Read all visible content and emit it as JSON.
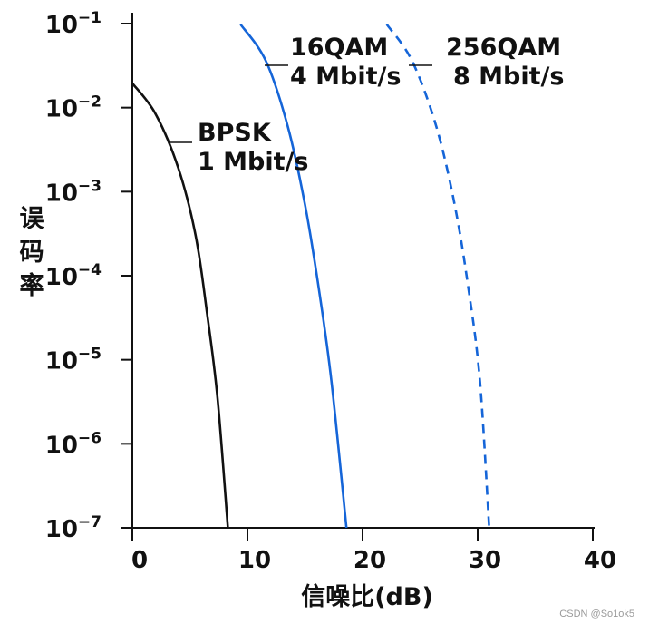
{
  "chart_data": {
    "type": "line",
    "ylabel": "误码率",
    "xlabel": "信噪比(dB)",
    "xlim": [
      0,
      40
    ],
    "ylim_exponents": [
      -7,
      -1
    ],
    "y_scale": "log",
    "x_ticks": [
      "0",
      "10",
      "20",
      "30",
      "40"
    ],
    "y_ticks": [
      {
        "base": "10",
        "exp": "−1"
      },
      {
        "base": "10",
        "exp": "−2"
      },
      {
        "base": "10",
        "exp": "−3"
      },
      {
        "base": "10",
        "exp": "−4"
      },
      {
        "base": "10",
        "exp": "−5"
      },
      {
        "base": "10",
        "exp": "−6"
      },
      {
        "base": "10",
        "exp": "−7"
      }
    ],
    "series": [
      {
        "label_lines": [
          "BPSK",
          "1 Mbit/s"
        ],
        "color": "#111111",
        "dashed": false,
        "points": [
          [
            0.0,
            0.0195
          ],
          [
            2.0,
            0.0085
          ],
          [
            4.0,
            0.0019
          ],
          [
            5.5,
            0.0003
          ],
          [
            6.5,
            3.5e-05
          ],
          [
            7.4,
            3.5e-06
          ],
          [
            8.3,
            1e-07
          ]
        ]
      },
      {
        "label_lines": [
          "16QAM",
          "4 Mbit/s"
        ],
        "color": "#1565d8",
        "dashed": false,
        "points": [
          [
            9.4,
            0.098
          ],
          [
            11.6,
            0.036
          ],
          [
            13.5,
            0.006
          ],
          [
            15.0,
            0.0007
          ],
          [
            16.2,
            7e-05
          ],
          [
            17.3,
            5.5e-06
          ],
          [
            18.6,
            1e-07
          ]
        ]
      },
      {
        "label_lines": [
          "256QAM",
          "8 Mbit/s"
        ],
        "color": "#1565d8",
        "dashed": true,
        "points": [
          [
            22.1,
            0.098
          ],
          [
            24.3,
            0.036
          ],
          [
            26.4,
            0.006
          ],
          [
            28.0,
            0.0007
          ],
          [
            29.2,
            7e-05
          ],
          [
            30.2,
            5.5e-06
          ],
          [
            31.0,
            1e-07
          ]
        ]
      }
    ]
  },
  "watermark": "CSDN @So1ok5"
}
